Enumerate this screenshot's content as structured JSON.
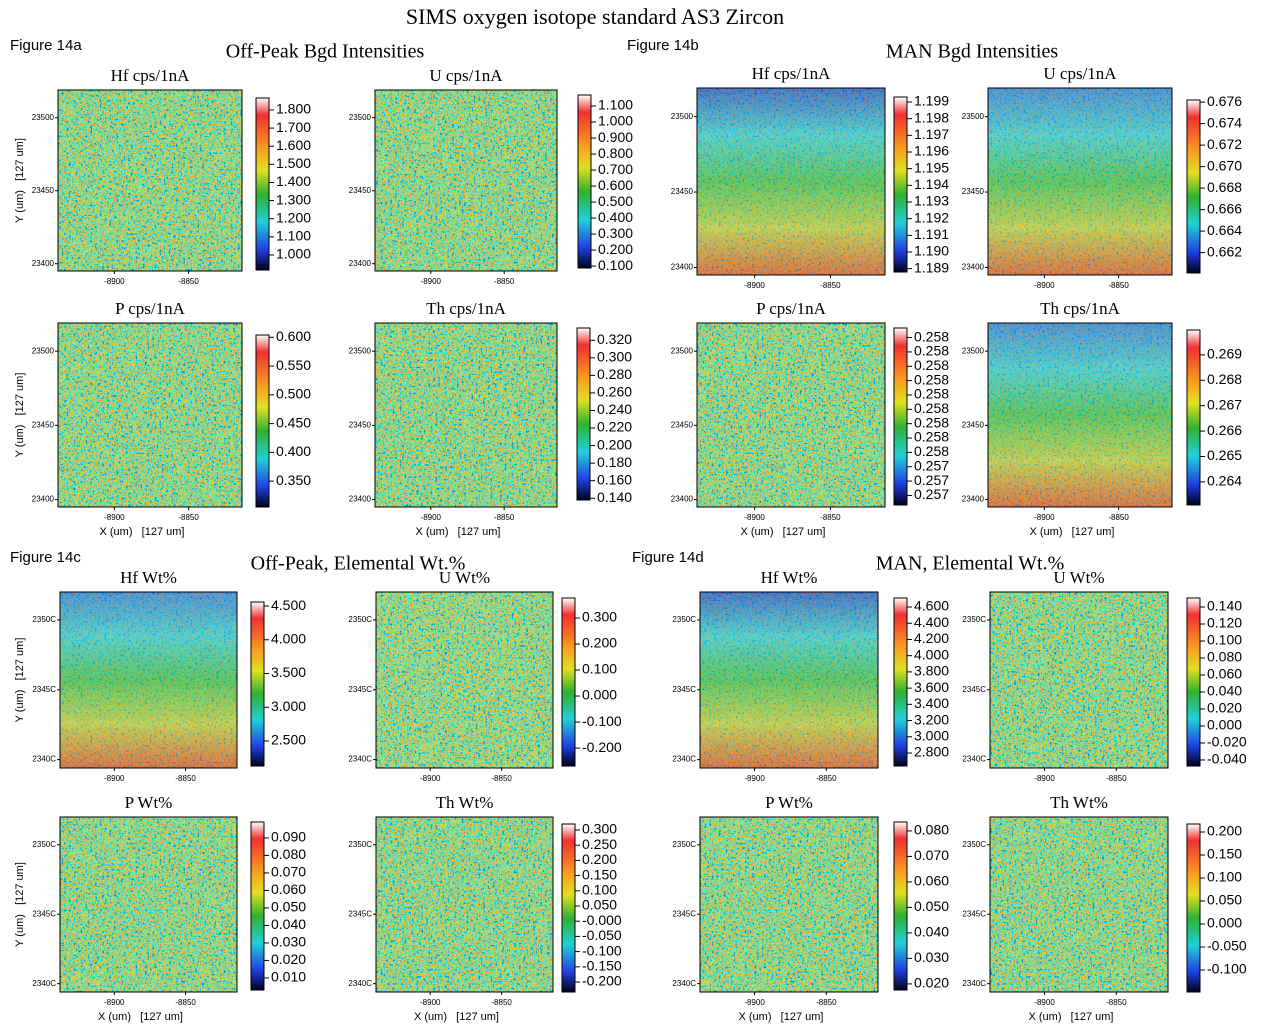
{
  "title": "SIMS oxygen isotope standard AS3 Zircon",
  "figures": [
    {
      "label": "Figure 14a",
      "title": "Off-Peak Bgd Intensities"
    },
    {
      "label": "Figure 14b",
      "title": "MAN Bgd Intensities"
    },
    {
      "label": "Figure 14c",
      "title": "Off-Peak, Elemental Wt.%"
    },
    {
      "label": "Figure 14d",
      "title": "MAN, Elemental Wt.%"
    }
  ],
  "chart_data": [
    {
      "type": "heatmap",
      "title": "Hf cps/1nA",
      "xlim": [
        -8938,
        -8814
      ],
      "xticks": [
        -8900,
        -8850
      ],
      "ylim": [
        23395,
        23519
      ],
      "yticks": [
        23400,
        23450,
        23500
      ],
      "y_label": "Y (um)   [127 um]",
      "map_colors": [
        "#5cb848"
      ],
      "clim": [
        0.917,
        1.866
      ],
      "cticks": [
        {
          "value": 1.8,
          "label": "1.800"
        },
        {
          "value": 1.7,
          "label": "1.700"
        },
        {
          "value": 1.6,
          "label": "1.600"
        },
        {
          "value": 1.5,
          "label": "1.500"
        },
        {
          "value": 1.4,
          "label": "1.400"
        },
        {
          "value": 1.3,
          "label": "1.300"
        },
        {
          "value": 1.2,
          "label": "1.200"
        },
        {
          "value": 1.1,
          "label": "1.100"
        },
        {
          "value": 1.0,
          "label": "1.000"
        }
      ]
    },
    {
      "type": "heatmap",
      "title": "U cps/1nA",
      "xlim": [
        -8938,
        -8814
      ],
      "xticks": [
        -8900,
        -8850
      ],
      "ylim": [
        23395,
        23519
      ],
      "yticks": [
        23400,
        23450,
        23500
      ],
      "map_colors": [
        "#5cb848"
      ],
      "clim": [
        0.088,
        1.169
      ],
      "cticks": [
        {
          "value": 1.1,
          "label": "1.100"
        },
        {
          "value": 1.0,
          "label": "1.000"
        },
        {
          "value": 0.9,
          "label": "0.900"
        },
        {
          "value": 0.8,
          "label": "0.800"
        },
        {
          "value": 0.7,
          "label": "0.700"
        },
        {
          "value": 0.6,
          "label": "0.600"
        },
        {
          "value": 0.5,
          "label": "0.500"
        },
        {
          "value": 0.4,
          "label": "0.400"
        },
        {
          "value": 0.3,
          "label": "0.300"
        },
        {
          "value": 0.2,
          "label": "0.200"
        },
        {
          "value": 0.1,
          "label": "0.100"
        }
      ]
    },
    {
      "type": "heatmap",
      "title": "P cps/1nA",
      "xlim": [
        -8938,
        -8814
      ],
      "xticks": [
        -8900,
        -8850
      ],
      "ylim": [
        23395,
        23519
      ],
      "yticks": [
        23400,
        23450,
        23500
      ],
      "y_label": "Y (um)   [127 um]",
      "x_label": "X (um)   [127 um]",
      "map_colors": [
        "#5cb848"
      ],
      "clim": [
        0.305,
        0.604
      ],
      "cticks": [
        {
          "value": 0.6,
          "label": "0.600"
        },
        {
          "value": 0.55,
          "label": "0.550"
        },
        {
          "value": 0.5,
          "label": "0.500"
        },
        {
          "value": 0.45,
          "label": "0.450"
        },
        {
          "value": 0.4,
          "label": "0.400"
        },
        {
          "value": 0.35,
          "label": "0.350"
        }
      ]
    },
    {
      "type": "heatmap",
      "title": "Th cps/1nA",
      "xlim": [
        -8938,
        -8814
      ],
      "xticks": [
        -8900,
        -8850
      ],
      "ylim": [
        23395,
        23519
      ],
      "yticks": [
        23400,
        23450,
        23500
      ],
      "x_label": "X (um)   [127 um]",
      "map_colors": [
        "#5cb848"
      ],
      "clim": [
        0.138,
        0.334
      ],
      "cticks": [
        {
          "value": 0.32,
          "label": "0.320"
        },
        {
          "value": 0.3,
          "label": "0.300"
        },
        {
          "value": 0.28,
          "label": "0.280"
        },
        {
          "value": 0.26,
          "label": "0.260"
        },
        {
          "value": 0.24,
          "label": "0.240"
        },
        {
          "value": 0.22,
          "label": "0.220"
        },
        {
          "value": 0.2,
          "label": "0.200"
        },
        {
          "value": 0.18,
          "label": "0.180"
        },
        {
          "value": 0.16,
          "label": "0.160"
        },
        {
          "value": 0.14,
          "label": "0.140"
        }
      ]
    },
    {
      "type": "heatmap",
      "title": "Hf cps/1nA",
      "xlim": [
        -8938,
        -8814
      ],
      "xticks": [
        -8900,
        -8850
      ],
      "ylim": [
        23395,
        23519
      ],
      "yticks": [
        23400,
        23450,
        23500
      ],
      "map_colors": [
        "#1f3fd6",
        "#30c4e4",
        "#3cb84a",
        "#d0c838",
        "#f04020"
      ],
      "clim": [
        1.1888,
        1.1993
      ],
      "cticks": [
        1.199,
        1.198,
        1.197,
        1.196,
        1.195,
        1.194,
        1.193,
        1.192,
        1.191,
        {
          "value": 1.19,
          "label": "1.190"
        },
        1.189
      ]
    },
    {
      "type": "heatmap",
      "title": "U cps/1nA",
      "xlim": [
        -8938,
        -8814
      ],
      "xticks": [
        -8900,
        -8850
      ],
      "ylim": [
        23395,
        23519
      ],
      "yticks": [
        23400,
        23450,
        23500
      ],
      "map_colors": [
        "#2a6ae8",
        "#30c4e4",
        "#3cb84a",
        "#d0c838",
        "#f04020"
      ],
      "clim": [
        0.6601,
        0.6762
      ],
      "cticks": [
        0.676,
        0.674,
        0.672,
        {
          "value": 0.67,
          "label": "0.670"
        },
        0.668,
        0.666,
        0.664,
        0.662
      ]
    },
    {
      "type": "heatmap",
      "title": "P cps/1nA",
      "xlim": [
        -8938,
        -8814
      ],
      "xticks": [
        -8900,
        -8850
      ],
      "ylim": [
        23395,
        23519
      ],
      "yticks": [
        23400,
        23450,
        23500
      ],
      "x_label": "X (um)   [127 um]",
      "map_colors": [
        "#5cb848"
      ],
      "clim": [
        0.25723,
        0.25834
      ],
      "cticks": [
        {
          "value": 0.25828,
          "label": "0.258"
        },
        {
          "value": 0.25819,
          "label": "0.258"
        },
        {
          "value": 0.2581,
          "label": "0.258"
        },
        {
          "value": 0.25801,
          "label": "0.258"
        },
        {
          "value": 0.25792,
          "label": "0.258"
        },
        {
          "value": 0.25783,
          "label": "0.258"
        },
        {
          "value": 0.25774,
          "label": "0.258"
        },
        {
          "value": 0.25765,
          "label": "0.258"
        },
        {
          "value": 0.25756,
          "label": "0.258"
        },
        {
          "value": 0.25747,
          "label": "0.257"
        },
        {
          "value": 0.25738,
          "label": "0.257"
        },
        {
          "value": 0.25729,
          "label": "0.257"
        }
      ]
    },
    {
      "type": "heatmap",
      "title": "Th cps/1nA",
      "xlim": [
        -8938,
        -8814
      ],
      "xticks": [
        -8900,
        -8850
      ],
      "ylim": [
        23395,
        23519
      ],
      "yticks": [
        23400,
        23450,
        23500
      ],
      "x_label": "X (um)   [127 um]",
      "map_colors": [
        "#2a6ae8",
        "#30c4e4",
        "#3cb84a",
        "#d0c838",
        "#f04020"
      ],
      "clim": [
        0.26309,
        0.26998
      ],
      "cticks": [
        0.269,
        0.268,
        0.267,
        0.266,
        0.265,
        0.264
      ]
    },
    {
      "type": "heatmap",
      "title": "Hf Wt%",
      "xlim": [
        -8938,
        -8814
      ],
      "xticks": [
        -8900,
        -8850
      ],
      "ylim": [
        23394,
        23520
      ],
      "yticks": [
        {
          "value": 23400,
          "label": "2340C"
        },
        {
          "value": 23450,
          "label": "2345C"
        },
        {
          "value": 23500,
          "label": "2350C"
        }
      ],
      "y_label": "Y (um)   [127 um]",
      "map_colors": [
        "#2a6ae8",
        "#30c4e4",
        "#3cb84a",
        "#d0c838",
        "#f04020"
      ],
      "clim": [
        2.13,
        4.56
      ],
      "cticks": [
        {
          "value": 4.5,
          "label": "4.500"
        },
        {
          "value": 4.0,
          "label": "4.000"
        },
        {
          "value": 3.5,
          "label": "3.500"
        },
        {
          "value": 3.0,
          "label": "3.000"
        },
        {
          "value": 2.5,
          "label": "2.500"
        }
      ]
    },
    {
      "type": "heatmap",
      "title": "U Wt%",
      "xlim": [
        -8938,
        -8814
      ],
      "xticks": [
        -8900,
        -8850
      ],
      "ylim": [
        23394,
        23520
      ],
      "yticks": [
        {
          "value": 23400,
          "label": "2340C"
        },
        {
          "value": 23450,
          "label": "2345C"
        },
        {
          "value": 23500,
          "label": "2350C"
        }
      ],
      "map_colors": [
        "#6cbc40"
      ],
      "clim": [
        -0.269,
        0.377
      ],
      "cticks": [
        {
          "value": 0.3,
          "label": "0.300"
        },
        {
          "value": 0.2,
          "label": "0.200"
        },
        {
          "value": 0.1,
          "label": "0.100"
        },
        {
          "value": 0,
          "label": "0.000"
        },
        {
          "value": -0.1,
          "label": "-0.100"
        },
        {
          "value": -0.2,
          "label": "-0.200"
        }
      ]
    },
    {
      "type": "heatmap",
      "title": "P Wt%",
      "xlim": [
        -8938,
        -8814
      ],
      "xticks": [
        -8900,
        -8850
      ],
      "ylim": [
        23394,
        23520
      ],
      "yticks": [
        {
          "value": 23400,
          "label": "2340C"
        },
        {
          "value": 23450,
          "label": "2345C"
        },
        {
          "value": 23500,
          "label": "2350C"
        }
      ],
      "y_label": "Y (um)   [127 um]",
      "x_label": "X (um)   [127 um]",
      "map_colors": [
        "#5cb848"
      ],
      "clim": [
        0.0031,
        0.0991
      ],
      "cticks": [
        {
          "value": 0.09,
          "label": "0.090"
        },
        {
          "value": 0.08,
          "label": "0.080"
        },
        {
          "value": 0.07,
          "label": "0.070"
        },
        {
          "value": 0.06,
          "label": "0.060"
        },
        {
          "value": 0.05,
          "label": "0.050"
        },
        {
          "value": 0.04,
          "label": "0.040"
        },
        {
          "value": 0.03,
          "label": "0.030"
        },
        {
          "value": 0.02,
          "label": "0.020"
        },
        {
          "value": 0.01,
          "label": "0.010"
        }
      ]
    },
    {
      "type": "heatmap",
      "title": "Th Wt%",
      "xlim": [
        -8938,
        -8814
      ],
      "xticks": [
        -8900,
        -8850
      ],
      "ylim": [
        23394,
        23520
      ],
      "yticks": [
        {
          "value": 23400,
          "label": "2340C"
        },
        {
          "value": 23450,
          "label": "2345C"
        },
        {
          "value": 23500,
          "label": "2350C"
        }
      ],
      "x_label": "X (um)   [127 um]",
      "map_colors": [
        "#5cb848"
      ],
      "clim": [
        -0.2329,
        0.3197
      ],
      "cticks": [
        {
          "value": 0.3,
          "label": "0.300"
        },
        {
          "value": 0.25,
          "label": "0.250"
        },
        {
          "value": 0.2,
          "label": "0.200"
        },
        {
          "value": 0.15,
          "label": "0.150"
        },
        {
          "value": 0.1,
          "label": "0.100"
        },
        {
          "value": 0.05,
          "label": "0.050"
        },
        {
          "value": 0,
          "label": "-0.000"
        },
        {
          "value": -0.05,
          "label": "-0.050"
        },
        {
          "value": -0.1,
          "label": "-0.100"
        },
        {
          "value": -0.15,
          "label": "-0.150"
        },
        {
          "value": -0.2,
          "label": "-0.200"
        }
      ]
    },
    {
      "type": "heatmap",
      "title": "Hf Wt%",
      "xlim": [
        -8938,
        -8814
      ],
      "xticks": [
        -8900,
        -8850
      ],
      "ylim": [
        23394,
        23520
      ],
      "yticks": [
        {
          "value": 23400,
          "label": "2340C"
        },
        {
          "value": 23450,
          "label": "2345C"
        },
        {
          "value": 23500,
          "label": "2350C"
        }
      ],
      "map_colors": [
        "#1f3fd6",
        "#30c4e4",
        "#3cb84a",
        "#d0c838",
        "#f04020"
      ],
      "clim": [
        2.64,
        4.711
      ],
      "cticks": [
        {
          "value": 4.6,
          "label": "4.600"
        },
        {
          "value": 4.4,
          "label": "4.400"
        },
        {
          "value": 4.2,
          "label": "4.200"
        },
        {
          "value": 4.0,
          "label": "4.000"
        },
        {
          "value": 3.8,
          "label": "3.800"
        },
        {
          "value": 3.6,
          "label": "3.600"
        },
        {
          "value": 3.4,
          "label": "3.400"
        },
        {
          "value": 3.2,
          "label": "3.200"
        },
        {
          "value": 3.0,
          "label": "3.000"
        },
        {
          "value": 2.8,
          "label": "2.800"
        }
      ]
    },
    {
      "type": "heatmap",
      "title": "U Wt%",
      "xlim": [
        -8938,
        -8814
      ],
      "xticks": [
        -8900,
        -8850
      ],
      "ylim": [
        23394,
        23520
      ],
      "yticks": [
        {
          "value": 23400,
          "label": "2340C"
        },
        {
          "value": 23450,
          "label": "2345C"
        },
        {
          "value": 23500,
          "label": "2350C"
        }
      ],
      "map_colors": [
        "#5cb848"
      ],
      "clim": [
        -0.0471,
        0.1506
      ],
      "cticks": [
        {
          "value": 0.14,
          "label": "0.140"
        },
        {
          "value": 0.12,
          "label": "0.120"
        },
        {
          "value": 0.1,
          "label": "0.100"
        },
        {
          "value": 0.08,
          "label": "0.080"
        },
        {
          "value": 0.06,
          "label": "0.060"
        },
        {
          "value": 0.04,
          "label": "0.040"
        },
        {
          "value": 0.02,
          "label": "0.020"
        },
        {
          "value": 0,
          "label": "0.000"
        },
        {
          "value": -0.02,
          "label": "-0.020"
        },
        {
          "value": -0.04,
          "label": "-0.040"
        }
      ]
    },
    {
      "type": "heatmap",
      "title": "P Wt%",
      "xlim": [
        -8938,
        -8814
      ],
      "xticks": [
        -8900,
        -8850
      ],
      "ylim": [
        23394,
        23520
      ],
      "yticks": [
        {
          "value": 23400,
          "label": "2340C"
        },
        {
          "value": 23450,
          "label": "2345C"
        },
        {
          "value": 23500,
          "label": "2350C"
        }
      ],
      "x_label": "X (um)   [127 um]",
      "map_colors": [
        "#5cb848"
      ],
      "clim": [
        0.0176,
        0.0835
      ],
      "cticks": [
        {
          "value": 0.08,
          "label": "0.080"
        },
        {
          "value": 0.07,
          "label": "0.070"
        },
        {
          "value": 0.06,
          "label": "0.060"
        },
        {
          "value": 0.05,
          "label": "0.050"
        },
        {
          "value": 0.04,
          "label": "0.040"
        },
        {
          "value": 0.03,
          "label": "0.030"
        },
        {
          "value": 0.02,
          "label": "0.020"
        }
      ]
    },
    {
      "type": "heatmap",
      "title": "Th Wt%",
      "xlim": [
        -8938,
        -8814
      ],
      "xticks": [
        -8900,
        -8850
      ],
      "ylim": [
        23394,
        23520
      ],
      "yticks": [
        {
          "value": 23400,
          "label": "2340C"
        },
        {
          "value": 23450,
          "label": "2345C"
        },
        {
          "value": 23500,
          "label": "2350C"
        }
      ],
      "x_label": "X (um)   [127 um]",
      "map_colors": [
        "#5cb848"
      ],
      "clim": [
        -0.1478,
        0.2174
      ],
      "cticks": [
        {
          "value": 0.2,
          "label": "0.200"
        },
        {
          "value": 0.15,
          "label": "0.150"
        },
        {
          "value": 0.1,
          "label": "0.100"
        },
        {
          "value": 0.05,
          "label": "0.050"
        },
        {
          "value": 0,
          "label": "0.000"
        },
        {
          "value": -0.05,
          "label": "-0.050"
        },
        {
          "value": -0.1,
          "label": "-0.100"
        }
      ]
    }
  ]
}
